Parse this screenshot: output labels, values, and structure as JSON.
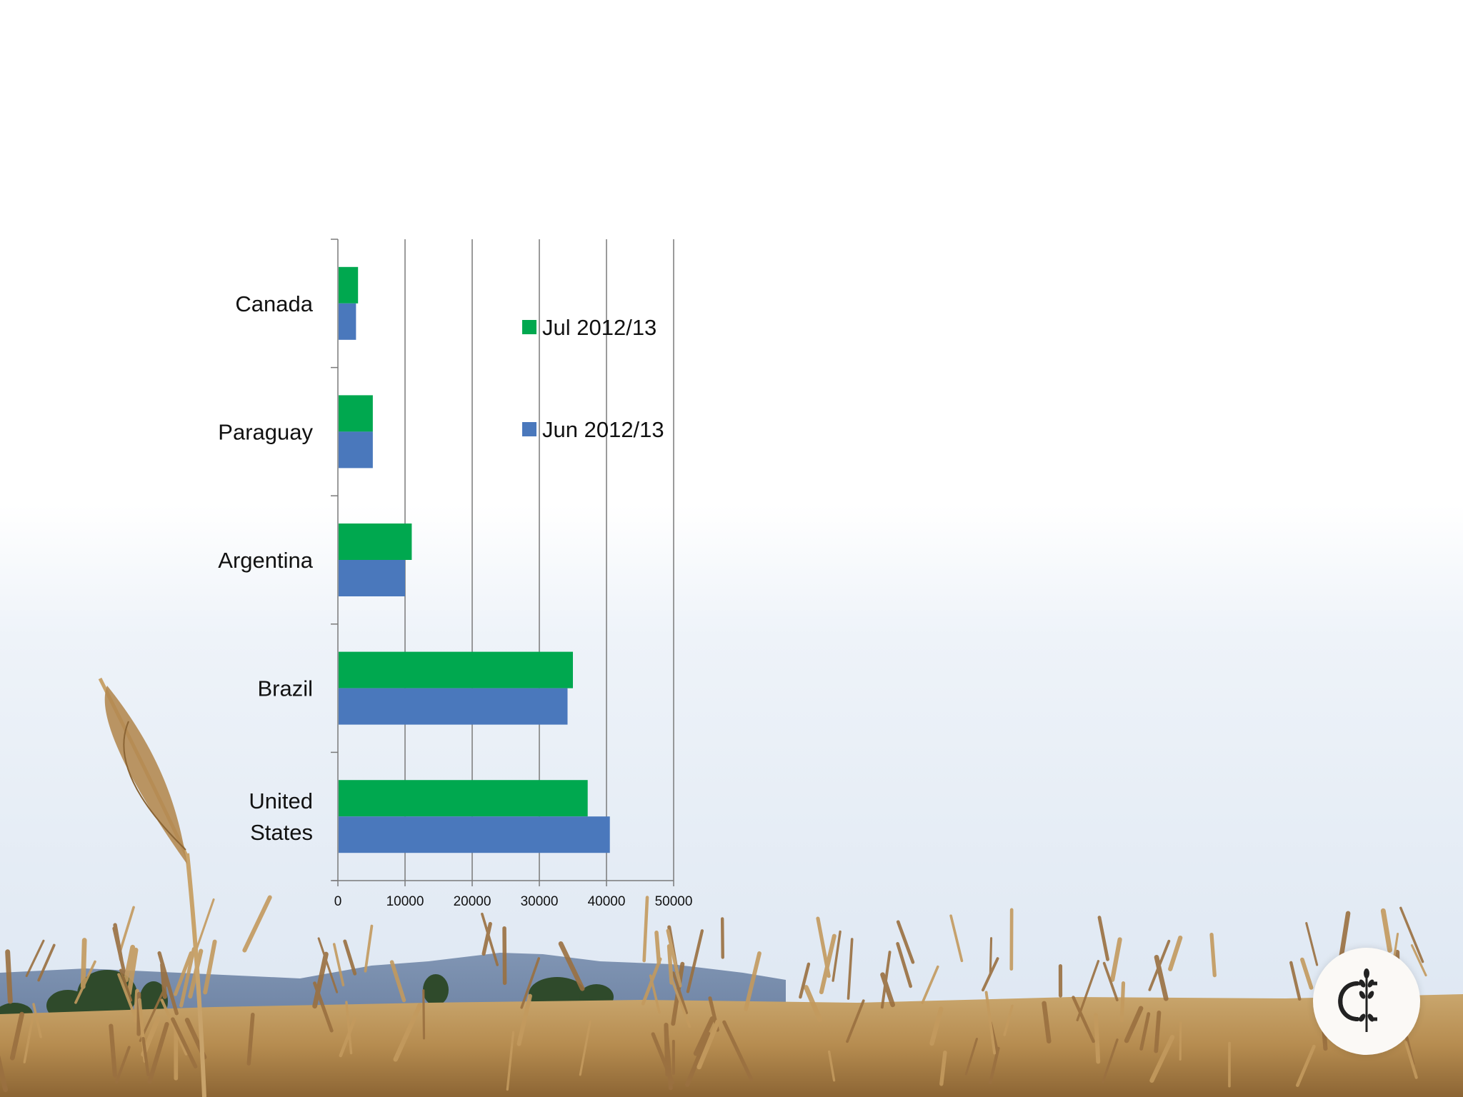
{
  "chart_data": {
    "type": "bar",
    "orientation": "horizontal",
    "categories": [
      "Canada",
      "Paraguay",
      "Argentina",
      "Brazil",
      "United States"
    ],
    "category_lines": [
      [
        "Canada"
      ],
      [
        "Paraguay"
      ],
      [
        "Argentina"
      ],
      [
        "Brazil"
      ],
      [
        "United",
        "States"
      ]
    ],
    "series": [
      {
        "name": "Jul 2012/13",
        "color": "#00a84f",
        "values": [
          3000,
          5200,
          11000,
          35000,
          37200
        ]
      },
      {
        "name": "Jun 2012/13",
        "color": "#4a78bc",
        "values": [
          2700,
          5200,
          10000,
          34200,
          40500
        ]
      }
    ],
    "xlim": [
      0,
      50000
    ],
    "x_ticks": [
      "0",
      "10000",
      "20000",
      "30000",
      "40000",
      "50000"
    ],
    "grid": true,
    "legend_position": "top-right"
  },
  "colors": {
    "sky_top": "#ffffff",
    "sky_bottom": "#dfe8f3",
    "field": "#b58c52"
  },
  "logo": {
    "icon": "wheat-cc-logo-icon"
  }
}
